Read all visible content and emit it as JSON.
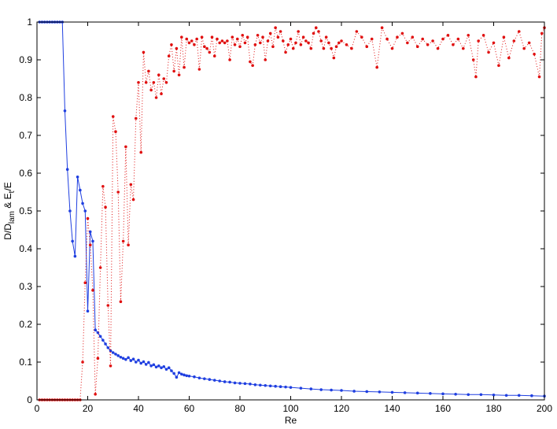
{
  "chart_data": {
    "type": "line",
    "title": "",
    "xlabel": "Re",
    "ylabel_parts": {
      "a": "D/D",
      "a_sub": "lam",
      "b": " & E",
      "b_sub": "t",
      "c": "/E"
    },
    "xlim": [
      0,
      200
    ],
    "ylim": [
      0,
      1
    ],
    "xticks": [
      0,
      20,
      40,
      60,
      80,
      100,
      120,
      140,
      160,
      180,
      200
    ],
    "yticks": [
      0,
      0.1,
      0.2,
      0.3,
      0.4,
      0.5,
      0.6,
      0.7,
      0.8,
      0.9,
      1
    ],
    "reference_line": {
      "y": 1,
      "color": "#888888",
      "style": "dotted"
    },
    "grid": false,
    "legend": "none",
    "series": [
      {
        "color": "#1f3fe0",
        "line_style": "solid",
        "marker": "dot",
        "points": [
          [
            1,
            1
          ],
          [
            2,
            1
          ],
          [
            3,
            1
          ],
          [
            4,
            1
          ],
          [
            5,
            1
          ],
          [
            6,
            1
          ],
          [
            7,
            1
          ],
          [
            8,
            1
          ],
          [
            9,
            1
          ],
          [
            10,
            1
          ],
          [
            11,
            0.765
          ],
          [
            12,
            0.61
          ],
          [
            13,
            0.5
          ],
          [
            14,
            0.42
          ],
          [
            15,
            0.38
          ],
          [
            16,
            0.59
          ],
          [
            17,
            0.555
          ],
          [
            18,
            0.52
          ],
          [
            19,
            0.5
          ],
          [
            20,
            0.235
          ],
          [
            21,
            0.445
          ],
          [
            22,
            0.42
          ],
          [
            23,
            0.185
          ],
          [
            24,
            0.178
          ],
          [
            25,
            0.168
          ],
          [
            26,
            0.158
          ],
          [
            27,
            0.148
          ],
          [
            28,
            0.138
          ],
          [
            29,
            0.13
          ],
          [
            30,
            0.125
          ],
          [
            31,
            0.121
          ],
          [
            32,
            0.117
          ],
          [
            33,
            0.113
          ],
          [
            34,
            0.11
          ],
          [
            35,
            0.107
          ],
          [
            36,
            0.112
          ],
          [
            37,
            0.104
          ],
          [
            38,
            0.108
          ],
          [
            39,
            0.1
          ],
          [
            40,
            0.105
          ],
          [
            41,
            0.097
          ],
          [
            42,
            0.101
          ],
          [
            43,
            0.094
          ],
          [
            44,
            0.099
          ],
          [
            45,
            0.09
          ],
          [
            46,
            0.093
          ],
          [
            47,
            0.087
          ],
          [
            48,
            0.09
          ],
          [
            49,
            0.085
          ],
          [
            50,
            0.088
          ],
          [
            51,
            0.081
          ],
          [
            52,
            0.085
          ],
          [
            53,
            0.077
          ],
          [
            54,
            0.07
          ],
          [
            55,
            0.06
          ],
          [
            56,
            0.072
          ],
          [
            57,
            0.068
          ],
          [
            58,
            0.066
          ],
          [
            59,
            0.064
          ],
          [
            60,
            0.063
          ],
          [
            62,
            0.061
          ],
          [
            64,
            0.058
          ],
          [
            66,
            0.056
          ],
          [
            68,
            0.054
          ],
          [
            70,
            0.052
          ],
          [
            72,
            0.05
          ],
          [
            74,
            0.048
          ],
          [
            76,
            0.047
          ],
          [
            78,
            0.045
          ],
          [
            80,
            0.044
          ],
          [
            82,
            0.043
          ],
          [
            84,
            0.042
          ],
          [
            86,
            0.04
          ],
          [
            88,
            0.039
          ],
          [
            90,
            0.038
          ],
          [
            92,
            0.037
          ],
          [
            94,
            0.036
          ],
          [
            96,
            0.035
          ],
          [
            98,
            0.034
          ],
          [
            100,
            0.033
          ],
          [
            104,
            0.031
          ],
          [
            108,
            0.029
          ],
          [
            112,
            0.027
          ],
          [
            116,
            0.026
          ],
          [
            120,
            0.025
          ],
          [
            125,
            0.023
          ],
          [
            130,
            0.022
          ],
          [
            135,
            0.021
          ],
          [
            140,
            0.02
          ],
          [
            145,
            0.019
          ],
          [
            150,
            0.018
          ],
          [
            155,
            0.017
          ],
          [
            160,
            0.016
          ],
          [
            165,
            0.015
          ],
          [
            170,
            0.014
          ],
          [
            175,
            0.014
          ],
          [
            180,
            0.013
          ],
          [
            185,
            0.012
          ],
          [
            190,
            0.012
          ],
          [
            195,
            0.011
          ],
          [
            200,
            0.01
          ]
        ]
      },
      {
        "color": "#e01010",
        "line_style": "dotted",
        "marker": "dot",
        "points": [
          [
            1,
            0
          ],
          [
            2,
            0
          ],
          [
            3,
            0
          ],
          [
            4,
            0
          ],
          [
            5,
            0
          ],
          [
            6,
            0
          ],
          [
            7,
            0
          ],
          [
            8,
            0
          ],
          [
            9,
            0
          ],
          [
            10,
            0
          ],
          [
            11,
            0
          ],
          [
            12,
            0
          ],
          [
            13,
            0
          ],
          [
            14,
            0
          ],
          [
            15,
            0
          ],
          [
            16,
            0
          ],
          [
            17,
            0
          ],
          [
            18,
            0.1
          ],
          [
            19,
            0.31
          ],
          [
            20,
            0.48
          ],
          [
            21,
            0.41
          ],
          [
            22,
            0.29
          ],
          [
            23,
            0.015
          ],
          [
            24,
            0.11
          ],
          [
            25,
            0.35
          ],
          [
            26,
            0.565
          ],
          [
            27,
            0.51
          ],
          [
            28,
            0.25
          ],
          [
            29,
            0.09
          ],
          [
            30,
            0.75
          ],
          [
            31,
            0.71
          ],
          [
            32,
            0.55
          ],
          [
            33,
            0.26
          ],
          [
            34,
            0.42
          ],
          [
            35,
            0.67
          ],
          [
            36,
            0.41
          ],
          [
            37,
            0.57
          ],
          [
            38,
            0.53
          ],
          [
            39,
            0.745
          ],
          [
            40,
            0.84
          ],
          [
            41,
            0.655
          ],
          [
            42,
            0.92
          ],
          [
            43,
            0.84
          ],
          [
            44,
            0.87
          ],
          [
            45,
            0.82
          ],
          [
            46,
            0.84
          ],
          [
            47,
            0.8
          ],
          [
            48,
            0.86
          ],
          [
            49,
            0.81
          ],
          [
            50,
            0.85
          ],
          [
            51,
            0.84
          ],
          [
            52,
            0.91
          ],
          [
            53,
            0.94
          ],
          [
            54,
            0.87
          ],
          [
            55,
            0.93
          ],
          [
            56,
            0.86
          ],
          [
            57,
            0.96
          ],
          [
            58,
            0.88
          ],
          [
            59,
            0.955
          ],
          [
            60,
            0.945
          ],
          [
            61,
            0.95
          ],
          [
            62,
            0.94
          ],
          [
            63,
            0.955
          ],
          [
            64,
            0.875
          ],
          [
            65,
            0.96
          ],
          [
            66,
            0.935
          ],
          [
            67,
            0.93
          ],
          [
            68,
            0.92
          ],
          [
            69,
            0.96
          ],
          [
            70,
            0.91
          ],
          [
            71,
            0.955
          ],
          [
            72,
            0.945
          ],
          [
            73,
            0.95
          ],
          [
            74,
            0.945
          ],
          [
            75,
            0.95
          ],
          [
            76,
            0.9
          ],
          [
            77,
            0.96
          ],
          [
            78,
            0.94
          ],
          [
            79,
            0.955
          ],
          [
            80,
            0.935
          ],
          [
            81,
            0.965
          ],
          [
            82,
            0.945
          ],
          [
            83,
            0.96
          ],
          [
            84,
            0.895
          ],
          [
            85,
            0.885
          ],
          [
            86,
            0.94
          ],
          [
            87,
            0.965
          ],
          [
            88,
            0.945
          ],
          [
            89,
            0.96
          ],
          [
            90,
            0.9
          ],
          [
            91,
            0.95
          ],
          [
            92,
            0.97
          ],
          [
            93,
            0.935
          ],
          [
            94,
            0.985
          ],
          [
            95,
            0.96
          ],
          [
            96,
            0.975
          ],
          [
            97,
            0.95
          ],
          [
            98,
            0.92
          ],
          [
            99,
            0.94
          ],
          [
            100,
            0.955
          ],
          [
            101,
            0.93
          ],
          [
            102,
            0.945
          ],
          [
            103,
            0.975
          ],
          [
            104,
            0.94
          ],
          [
            105,
            0.96
          ],
          [
            106,
            0.95
          ],
          [
            107,
            0.945
          ],
          [
            108,
            0.93
          ],
          [
            109,
            0.97
          ],
          [
            110,
            0.985
          ],
          [
            111,
            0.975
          ],
          [
            112,
            0.95
          ],
          [
            113,
            0.93
          ],
          [
            114,
            0.96
          ],
          [
            115,
            0.945
          ],
          [
            116,
            0.93
          ],
          [
            117,
            0.905
          ],
          [
            118,
            0.935
          ],
          [
            119,
            0.945
          ],
          [
            120,
            0.95
          ],
          [
            122,
            0.94
          ],
          [
            124,
            0.93
          ],
          [
            126,
            0.975
          ],
          [
            128,
            0.96
          ],
          [
            130,
            0.935
          ],
          [
            132,
            0.955
          ],
          [
            134,
            0.88
          ],
          [
            136,
            0.985
          ],
          [
            138,
            0.955
          ],
          [
            140,
            0.93
          ],
          [
            142,
            0.96
          ],
          [
            144,
            0.97
          ],
          [
            146,
            0.945
          ],
          [
            148,
            0.96
          ],
          [
            150,
            0.935
          ],
          [
            152,
            0.955
          ],
          [
            154,
            0.94
          ],
          [
            156,
            0.95
          ],
          [
            158,
            0.93
          ],
          [
            160,
            0.955
          ],
          [
            162,
            0.965
          ],
          [
            164,
            0.94
          ],
          [
            166,
            0.955
          ],
          [
            168,
            0.93
          ],
          [
            170,
            0.965
          ],
          [
            172,
            0.9
          ],
          [
            173,
            0.855
          ],
          [
            174,
            0.95
          ],
          [
            176,
            0.965
          ],
          [
            178,
            0.92
          ],
          [
            180,
            0.945
          ],
          [
            182,
            0.885
          ],
          [
            184,
            0.96
          ],
          [
            186,
            0.905
          ],
          [
            188,
            0.95
          ],
          [
            190,
            0.975
          ],
          [
            192,
            0.93
          ],
          [
            194,
            0.945
          ],
          [
            196,
            0.915
          ],
          [
            198,
            0.855
          ],
          [
            199,
            0.97
          ],
          [
            200,
            0.985
          ]
        ]
      }
    ]
  }
}
